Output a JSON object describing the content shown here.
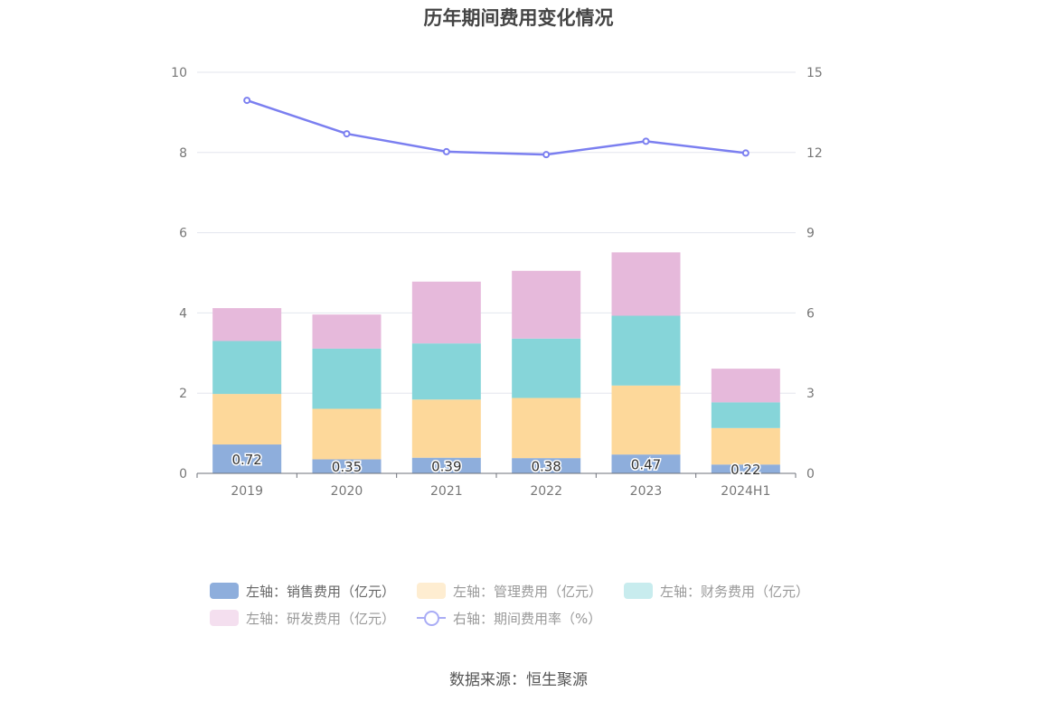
{
  "title": "历年期间费用变化情况",
  "source": "数据来源：恒生聚源",
  "legend": {
    "sales": "左轴：销售费用（亿元）",
    "admin": "左轴：管理费用（亿元）",
    "finance": "左轴：财务费用（亿元）",
    "rd": "左轴：研发费用（亿元）",
    "ratio": "右轴：期间费用率（%）"
  },
  "colors": {
    "sales": "#8eaedc",
    "admin": "#fdd89a",
    "finance": "#86d5d9",
    "rd": "#e6b9db",
    "ratio": "#7b7ff0"
  },
  "chart_data": {
    "type": "bar",
    "stacked": true,
    "categories": [
      "2019",
      "2020",
      "2021",
      "2022",
      "2023",
      "2024H1"
    ],
    "series": [
      {
        "name": "左轴：销售费用（亿元）",
        "key": "sales",
        "axis": "left",
        "values": [
          0.72,
          0.35,
          0.39,
          0.38,
          0.47,
          0.22
        ],
        "labels": [
          "0.72",
          "0.35",
          "0.39",
          "0.38",
          "0.47",
          "0.22"
        ]
      },
      {
        "name": "左轴：管理费用（亿元）",
        "key": "admin",
        "axis": "left",
        "values": [
          1.26,
          1.26,
          1.45,
          1.5,
          1.72,
          0.91
        ]
      },
      {
        "name": "左轴：财务费用（亿元）",
        "key": "finance",
        "axis": "left",
        "values": [
          1.32,
          1.5,
          1.4,
          1.48,
          1.74,
          0.64
        ]
      },
      {
        "name": "左轴：研发费用（亿元）",
        "key": "rd",
        "axis": "left",
        "values": [
          0.82,
          0.85,
          1.54,
          1.69,
          1.58,
          0.84
        ]
      },
      {
        "name": "右轴：期间费用率（%）",
        "key": "ratio",
        "axis": "right",
        "type": "line",
        "values": [
          13.95,
          12.7,
          12.03,
          11.92,
          12.42,
          11.98
        ]
      }
    ],
    "left_axis": {
      "ylim": [
        0,
        10
      ],
      "ticks": [
        "0",
        "2",
        "4",
        "6",
        "8",
        "10"
      ]
    },
    "right_axis": {
      "ylim": [
        0,
        15
      ],
      "ticks": [
        "0",
        "3",
        "6",
        "9",
        "12",
        "15"
      ]
    },
    "grid": true,
    "legend_position": "bottom"
  }
}
